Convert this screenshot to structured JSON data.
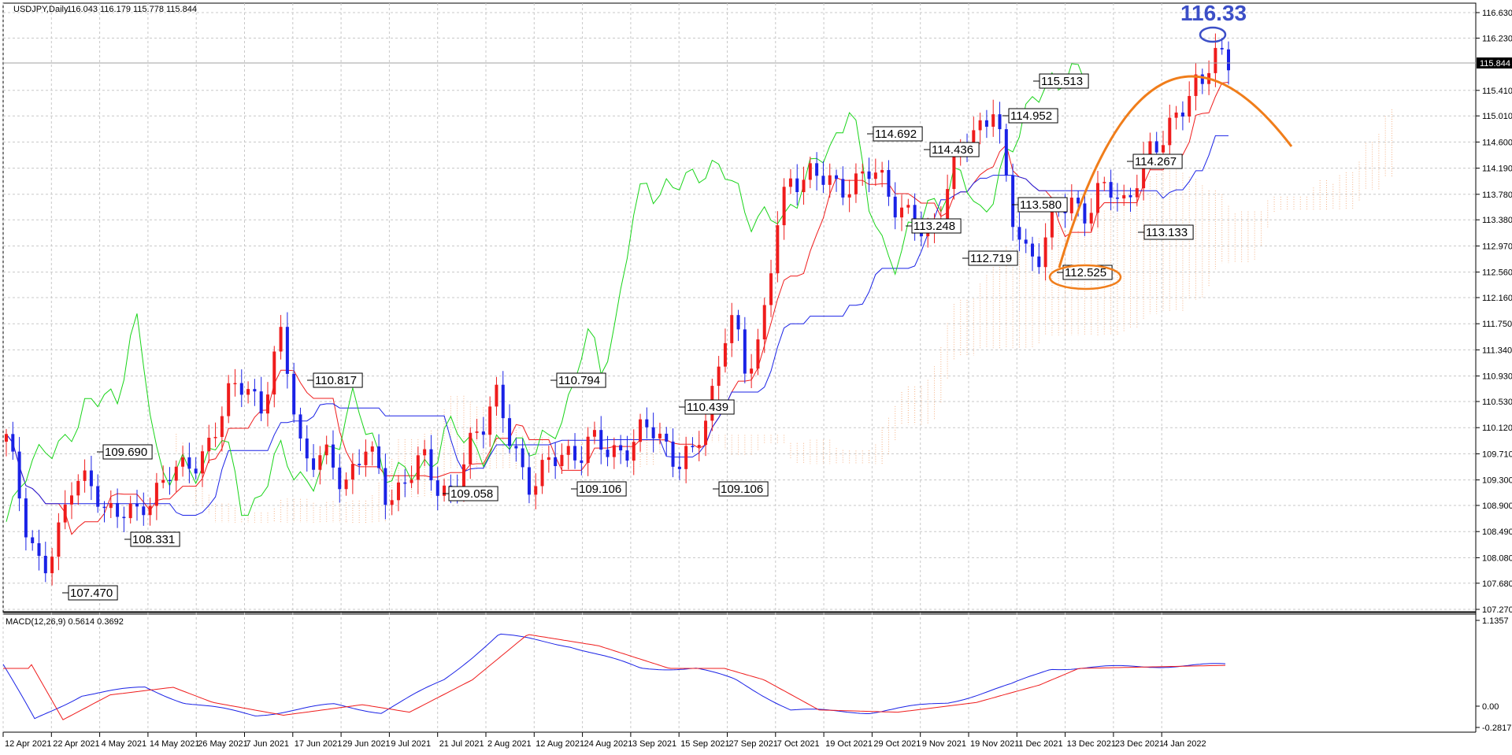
{
  "header": {
    "symbol_tf": "USDJPY,Daily",
    "ohlc": "116.043 116.179 115.778 115.844"
  },
  "macd": {
    "label": "MACD(12,26,9) 0.5614 0.3692",
    "ticks": [
      "1.1357",
      "0.00",
      "-0.2817"
    ]
  },
  "current_price": "115.844",
  "highlight_price": "116.33",
  "colors": {
    "bull": "#ef1c1c",
    "bear": "#1a22e6",
    "tenkan": "#ef1c1c",
    "kijun": "#1a22e6",
    "chikou": "#19d419",
    "cloud": "#f2a06a",
    "macd_main": "#1a22e6",
    "macd_signal": "#ef1c1c",
    "drawing": "#f07d1a",
    "ellipse_high": "#3c4fc7"
  },
  "chart_data": {
    "type": "candlestick",
    "symbol": "USDJPY",
    "timeframe": "Daily",
    "y_ticks": [
      "116.630",
      "116.230",
      "115.410",
      "115.010",
      "114.600",
      "114.190",
      "113.780",
      "113.380",
      "112.970",
      "112.560",
      "112.160",
      "111.750",
      "111.340",
      "110.930",
      "110.530",
      "110.120",
      "109.710",
      "109.300",
      "108.900",
      "108.490",
      "108.080",
      "107.680",
      "107.270"
    ],
    "x_ticks": [
      "12 Apr 2021",
      "22 Apr 2021",
      "4 May 2021",
      "14 May 2021",
      "26 May 2021",
      "7 Jun 2021",
      "17 Jun 2021",
      "29 Jun 2021",
      "9 Jul 2021",
      "21 Jul 2021",
      "2 Aug 2021",
      "12 Aug 2021",
      "24 Aug 2021",
      "3 Sep 2021",
      "15 Sep 2021",
      "27 Sep 2021",
      "7 Oct 2021",
      "19 Oct 2021",
      "29 Oct 2021",
      "9 Nov 2021",
      "19 Nov 2021",
      "1 Dec 2021",
      "13 Dec 2021",
      "23 Dec 2021",
      "4 Jan 2022"
    ],
    "ylim": [
      107.27,
      116.63
    ],
    "annotations": [
      "107.470",
      "109.690",
      "108.331",
      "110.817",
      "109.058",
      "110.794",
      "109.106",
      "110.439",
      "109.106",
      "114.692",
      "114.436",
      "113.248",
      "112.719",
      "114.952",
      "115.513",
      "113.580",
      "112.525",
      "114.267",
      "113.133"
    ],
    "indicators": [
      "Ichimoku",
      "MACD(12,26,9)"
    ]
  }
}
